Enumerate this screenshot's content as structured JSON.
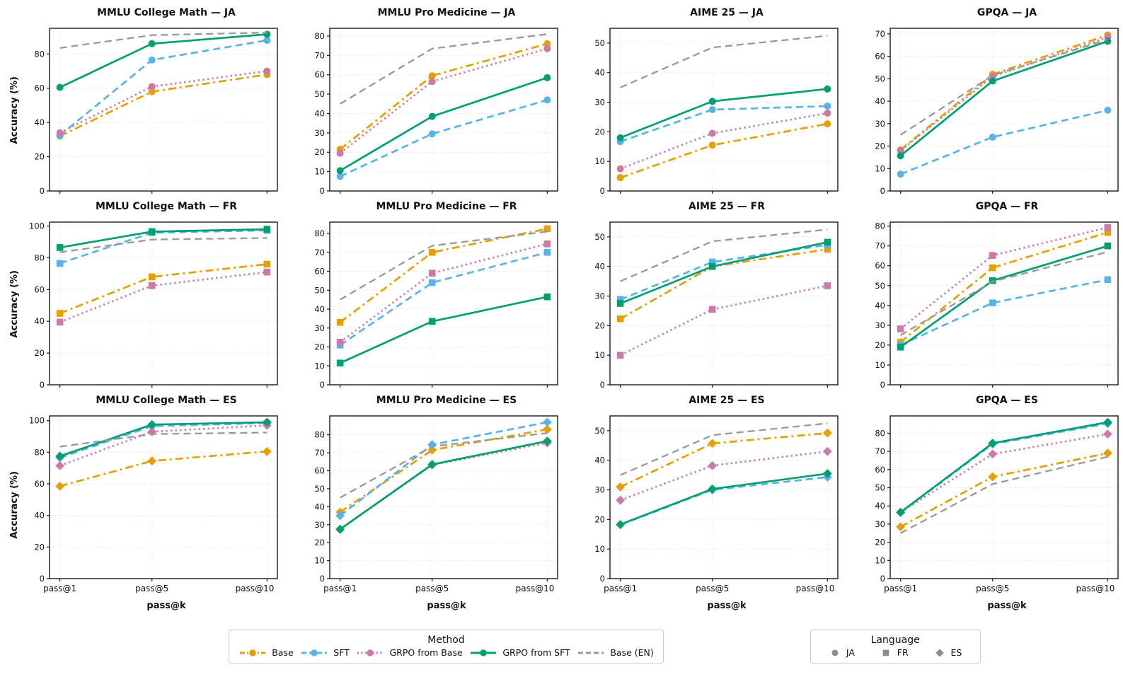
{
  "figure": {
    "ylabel": "Accuracy (%)",
    "xlabel": "pass@k",
    "x_values": [
      1,
      5,
      10
    ],
    "x_tick_labels": [
      "pass@1",
      "pass@5",
      "pass@10"
    ],
    "grid": true,
    "background": "#ffffff"
  },
  "methods": [
    {
      "name": "Base",
      "color": "#E69F00",
      "linestyle": "dashdot",
      "marker": true
    },
    {
      "name": "SFT",
      "color": "#56B4E9",
      "linestyle": "dashed",
      "marker": true
    },
    {
      "name": "GRPO from Base",
      "color": "#CC79A7",
      "linestyle": "dotted",
      "marker": true
    },
    {
      "name": "GRPO from SFT",
      "color": "#009E73",
      "linestyle": "solid",
      "marker": true
    },
    {
      "name": "Base (EN)",
      "color": "#999999",
      "linestyle": "dashed",
      "marker": false
    }
  ],
  "legends": {
    "method_title": "Method",
    "language_title": "Language",
    "language_items": [
      {
        "label": "JA",
        "marker": "circle"
      },
      {
        "label": "FR",
        "marker": "square"
      },
      {
        "label": "ES",
        "marker": "diamond"
      }
    ],
    "language_marker_color": "#8c8c8c"
  },
  "chart_data": [
    {
      "type": "line",
      "title": "MMLU College Math — JA",
      "language": "JA",
      "marker": "circle",
      "x": [
        1,
        5,
        10
      ],
      "ylim": [
        0,
        95
      ],
      "yticks": [
        0,
        20,
        40,
        60,
        80
      ],
      "series": [
        {
          "name": "Base",
          "values": [
            32,
            58,
            68
          ]
        },
        {
          "name": "SFT",
          "values": [
            32.5,
            76.5,
            88
          ]
        },
        {
          "name": "GRPO from Base",
          "values": [
            34,
            61,
            70
          ]
        },
        {
          "name": "GRPO from SFT",
          "values": [
            60.5,
            86,
            91.5
          ]
        },
        {
          "name": "Base (EN)",
          "values": [
            83.5,
            91,
            92.5
          ]
        }
      ]
    },
    {
      "type": "line",
      "title": "MMLU Pro Medicine — JA",
      "language": "JA",
      "marker": "circle",
      "x": [
        1,
        5,
        10
      ],
      "ylim": [
        0,
        84
      ],
      "yticks": [
        0,
        10,
        20,
        30,
        40,
        50,
        60,
        70,
        80
      ],
      "series": [
        {
          "name": "Base",
          "values": [
            21.5,
            59.5,
            76
          ]
        },
        {
          "name": "SFT",
          "values": [
            7.5,
            29.5,
            47
          ]
        },
        {
          "name": "GRPO from Base",
          "values": [
            19.5,
            56.5,
            73.5
          ]
        },
        {
          "name": "GRPO from SFT",
          "values": [
            10.5,
            38.5,
            58.5
          ]
        },
        {
          "name": "Base (EN)",
          "values": [
            45,
            73.5,
            81
          ]
        }
      ]
    },
    {
      "type": "line",
      "title": "AIME 25 — JA",
      "language": "JA",
      "marker": "circle",
      "x": [
        1,
        5,
        10
      ],
      "ylim": [
        0,
        55
      ],
      "yticks": [
        0,
        10,
        20,
        30,
        40,
        50
      ],
      "series": [
        {
          "name": "Base",
          "values": [
            4.5,
            15.5,
            22.7
          ]
        },
        {
          "name": "SFT",
          "values": [
            16.7,
            27.5,
            28.7
          ]
        },
        {
          "name": "GRPO from Base",
          "values": [
            7.5,
            19.5,
            26.3
          ]
        },
        {
          "name": "GRPO from SFT",
          "values": [
            18,
            30.3,
            34.5
          ]
        },
        {
          "name": "Base (EN)",
          "values": [
            35,
            48.5,
            52.5
          ]
        }
      ]
    },
    {
      "type": "line",
      "title": "GPQA — JA",
      "language": "JA",
      "marker": "circle",
      "x": [
        1,
        5,
        10
      ],
      "ylim": [
        0,
        72.5
      ],
      "yticks": [
        0,
        10,
        20,
        30,
        40,
        50,
        60,
        70
      ],
      "series": [
        {
          "name": "Base",
          "values": [
            18.3,
            52,
            69.5
          ]
        },
        {
          "name": "SFT",
          "values": [
            7.5,
            24,
            36
          ]
        },
        {
          "name": "GRPO from Base",
          "values": [
            18,
            51,
            68.5
          ]
        },
        {
          "name": "GRPO from SFT",
          "values": [
            15.7,
            49,
            66.7
          ]
        },
        {
          "name": "Base (EN)",
          "values": [
            25,
            51.5,
            67.5
          ]
        }
      ]
    },
    {
      "type": "line",
      "title": "MMLU College Math — FR",
      "language": "FR",
      "marker": "square",
      "x": [
        1,
        5,
        10
      ],
      "ylim": [
        0,
        102.5
      ],
      "yticks": [
        0,
        20,
        40,
        60,
        80,
        100
      ],
      "series": [
        {
          "name": "Base",
          "values": [
            45,
            68,
            76
          ]
        },
        {
          "name": "SFT",
          "values": [
            76.5,
            95.8,
            97.3
          ]
        },
        {
          "name": "GRPO from Base",
          "values": [
            39.5,
            62.5,
            71
          ]
        },
        {
          "name": "GRPO from SFT",
          "values": [
            86.5,
            96.5,
            98
          ]
        },
        {
          "name": "Base (EN)",
          "values": [
            83.5,
            91.5,
            92.5
          ]
        }
      ]
    },
    {
      "type": "line",
      "title": "MMLU Pro Medicine — FR",
      "language": "FR",
      "marker": "square",
      "x": [
        1,
        5,
        10
      ],
      "ylim": [
        0,
        86
      ],
      "yticks": [
        0,
        10,
        20,
        30,
        40,
        50,
        60,
        70,
        80
      ],
      "series": [
        {
          "name": "Base",
          "values": [
            33,
            70,
            82.5
          ]
        },
        {
          "name": "SFT",
          "values": [
            21,
            54,
            70
          ]
        },
        {
          "name": "GRPO from Base",
          "values": [
            22.5,
            59,
            74.5
          ]
        },
        {
          "name": "GRPO from SFT",
          "values": [
            11.5,
            33.5,
            46.5
          ]
        },
        {
          "name": "Base (EN)",
          "values": [
            45,
            73.5,
            81
          ]
        }
      ]
    },
    {
      "type": "line",
      "title": "AIME 25 — FR",
      "language": "FR",
      "marker": "square",
      "x": [
        1,
        5,
        10
      ],
      "ylim": [
        0,
        55
      ],
      "yticks": [
        0,
        10,
        20,
        30,
        40,
        50
      ],
      "series": [
        {
          "name": "Base",
          "values": [
            22.3,
            40,
            45.8
          ]
        },
        {
          "name": "SFT",
          "values": [
            28.8,
            41.5,
            47.3
          ]
        },
        {
          "name": "GRPO from Base",
          "values": [
            10,
            25.5,
            33.5
          ]
        },
        {
          "name": "GRPO from SFT",
          "values": [
            27.5,
            40,
            48.2
          ]
        },
        {
          "name": "Base (EN)",
          "values": [
            35,
            48.5,
            52.5
          ]
        }
      ]
    },
    {
      "type": "line",
      "title": "GPQA — FR",
      "language": "FR",
      "marker": "square",
      "x": [
        1,
        5,
        10
      ],
      "ylim": [
        0,
        82
      ],
      "yticks": [
        0,
        10,
        20,
        30,
        40,
        50,
        60,
        70,
        80
      ],
      "series": [
        {
          "name": "Base",
          "values": [
            21.5,
            59,
            76.8
          ]
        },
        {
          "name": "SFT",
          "values": [
            20,
            41.3,
            53
          ]
        },
        {
          "name": "GRPO from Base",
          "values": [
            28.2,
            65.2,
            79.3
          ]
        },
        {
          "name": "GRPO from SFT",
          "values": [
            19,
            52.5,
            70
          ]
        },
        {
          "name": "Base (EN)",
          "values": [
            25,
            52,
            67
          ]
        }
      ]
    },
    {
      "type": "line",
      "title": "MMLU College Math — ES",
      "language": "ES",
      "marker": "diamond",
      "x": [
        1,
        5,
        10
      ],
      "ylim": [
        0,
        103
      ],
      "yticks": [
        0,
        20,
        40,
        60,
        80,
        100
      ],
      "series": [
        {
          "name": "Base",
          "values": [
            58.5,
            74.5,
            80.5
          ]
        },
        {
          "name": "SFT",
          "values": [
            76.5,
            96.5,
            98.5
          ]
        },
        {
          "name": "GRPO from Base",
          "values": [
            71.5,
            93,
            97
          ]
        },
        {
          "name": "GRPO from SFT",
          "values": [
            77.5,
            97.5,
            99
          ]
        },
        {
          "name": "Base (EN)",
          "values": [
            83.5,
            91.5,
            92.5
          ]
        }
      ]
    },
    {
      "type": "line",
      "title": "MMLU Pro Medicine — ES",
      "language": "ES",
      "marker": "diamond",
      "x": [
        1,
        5,
        10
      ],
      "ylim": [
        0,
        90.5
      ],
      "yticks": [
        0,
        10,
        20,
        30,
        40,
        50,
        60,
        70,
        80
      ],
      "series": [
        {
          "name": "Base",
          "values": [
            37,
            71.5,
            83
          ]
        },
        {
          "name": "SFT",
          "values": [
            35,
            74.5,
            87
          ]
        },
        {
          "name": "GRPO from Base",
          "values": [
            27.3,
            63.2,
            75.5
          ]
        },
        {
          "name": "GRPO from SFT",
          "values": [
            27.5,
            63.5,
            76.5
          ]
        },
        {
          "name": "Base (EN)",
          "values": [
            45,
            73.5,
            81
          ]
        }
      ]
    },
    {
      "type": "line",
      "title": "AIME 25 — ES",
      "language": "ES",
      "marker": "diamond",
      "x": [
        1,
        5,
        10
      ],
      "ylim": [
        0,
        55
      ],
      "yticks": [
        0,
        10,
        20,
        30,
        40,
        50
      ],
      "series": [
        {
          "name": "Base",
          "values": [
            31,
            45.7,
            49.2
          ]
        },
        {
          "name": "SFT",
          "values": [
            18.2,
            30,
            34.3
          ]
        },
        {
          "name": "GRPO from Base",
          "values": [
            26.5,
            38.2,
            43
          ]
        },
        {
          "name": "GRPO from SFT",
          "values": [
            18.3,
            30.3,
            35.5
          ]
        },
        {
          "name": "Base (EN)",
          "values": [
            35,
            48.5,
            52.5
          ]
        }
      ]
    },
    {
      "type": "line",
      "title": "GPQA — ES",
      "language": "ES",
      "marker": "diamond",
      "x": [
        1,
        5,
        10
      ],
      "ylim": [
        0,
        89.5
      ],
      "yticks": [
        0,
        10,
        20,
        30,
        40,
        50,
        60,
        70,
        80
      ],
      "series": [
        {
          "name": "Base",
          "values": [
            28.5,
            56,
            69
          ]
        },
        {
          "name": "SFT",
          "values": [
            36.3,
            74,
            85.3
          ]
        },
        {
          "name": "GRPO from Base",
          "values": [
            36.5,
            68.5,
            79.5
          ]
        },
        {
          "name": "GRPO from SFT",
          "values": [
            36.5,
            74.5,
            86
          ]
        },
        {
          "name": "Base (EN)",
          "values": [
            25,
            52,
            67
          ]
        }
      ]
    }
  ]
}
